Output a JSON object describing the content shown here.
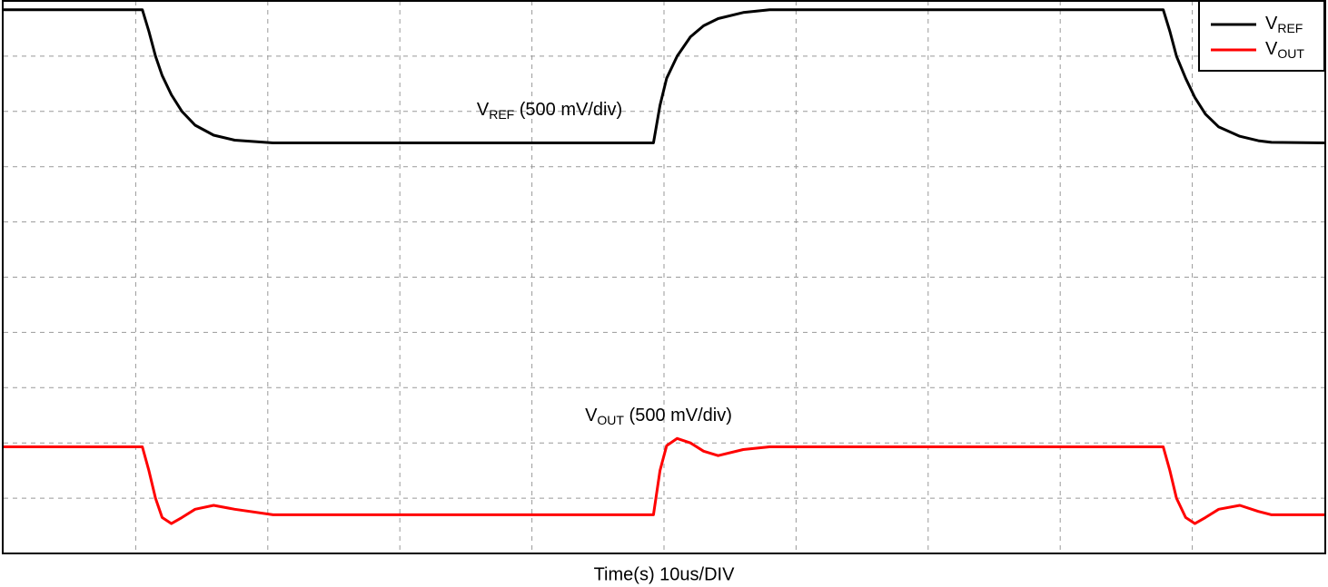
{
  "chart_data": {
    "type": "line",
    "annotations": [
      "VREF (500 mV/div)",
      "VOUT (500 mV/div)"
    ],
    "x_label": "Time(s) 10us/DIV",
    "x": [
      0,
      1.05,
      1.1,
      1.15,
      1.2,
      1.27,
      1.35,
      1.45,
      1.59,
      1.75,
      2.04,
      4.92,
      4.97,
      5.02,
      5.1,
      5.2,
      5.3,
      5.41,
      5.6,
      5.8,
      8.78,
      8.83,
      8.88,
      8.95,
      9.02,
      9.1,
      9.2,
      9.36,
      9.5,
      9.6,
      10
    ],
    "series": [
      {
        "name": "VREF",
        "color": "#000000",
        "values": [
          9.84,
          9.84,
          9.45,
          9.0,
          8.65,
          8.3,
          8.0,
          7.75,
          7.57,
          7.48,
          7.43,
          7.43,
          8.11,
          8.6,
          9.0,
          9.35,
          9.55,
          9.68,
          9.79,
          9.84,
          9.84,
          9.45,
          9.0,
          8.6,
          8.25,
          7.95,
          7.72,
          7.55,
          7.47,
          7.44,
          7.43
        ]
      },
      {
        "name": "VOUT",
        "color": "#ff0000",
        "values": [
          1.93,
          1.93,
          1.5,
          1.0,
          0.65,
          0.54,
          0.65,
          0.8,
          0.87,
          0.8,
          0.7,
          0.7,
          1.5,
          1.95,
          2.08,
          2.0,
          1.85,
          1.77,
          1.88,
          1.93,
          1.93,
          1.5,
          1.0,
          0.65,
          0.54,
          0.65,
          0.8,
          0.87,
          0.76,
          0.7,
          0.7
        ]
      }
    ],
    "xlim": [
      0,
      10
    ],
    "ylim": [
      0,
      10
    ],
    "xticks": [
      1,
      2,
      3,
      4,
      5,
      6,
      7,
      8,
      9
    ],
    "yticks": [
      1,
      2,
      3,
      4,
      5,
      6,
      7,
      8,
      9
    ],
    "grid": true,
    "legend": "upper right"
  }
}
